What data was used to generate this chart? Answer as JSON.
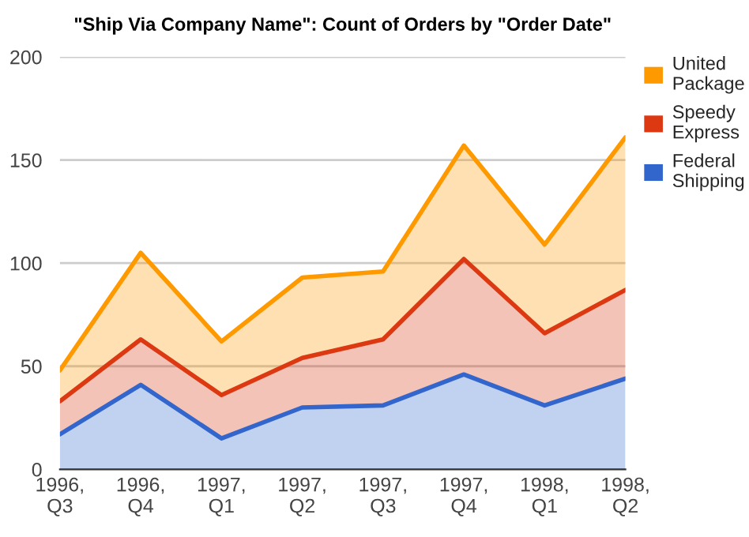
{
  "chart_data": {
    "type": "area",
    "title": "\"Ship Via Company Name\": Count of Orders by \"Order Date\"",
    "categories": [
      "1996,\nQ3",
      "1996,\nQ4",
      "1997,\nQ1",
      "1997,\nQ2",
      "1997,\nQ3",
      "1997,\nQ4",
      "1998,\nQ1",
      "1998,\nQ2"
    ],
    "stacked": true,
    "series": [
      {
        "name": "Federal Shipping",
        "color": "#3366cc",
        "values": [
          17,
          41,
          15,
          30,
          31,
          46,
          31,
          44
        ]
      },
      {
        "name": "Speedy Express",
        "color": "#dc3912",
        "values": [
          16,
          22,
          21,
          24,
          32,
          56,
          35,
          43
        ]
      },
      {
        "name": "United Package",
        "color": "#ff9900",
        "values": [
          15,
          42,
          26,
          39,
          33,
          55,
          43,
          74
        ]
      }
    ],
    "ylim": [
      0,
      200
    ],
    "yticks": [
      0,
      50,
      100,
      150,
      200
    ],
    "grid": "y",
    "legend": "right"
  }
}
